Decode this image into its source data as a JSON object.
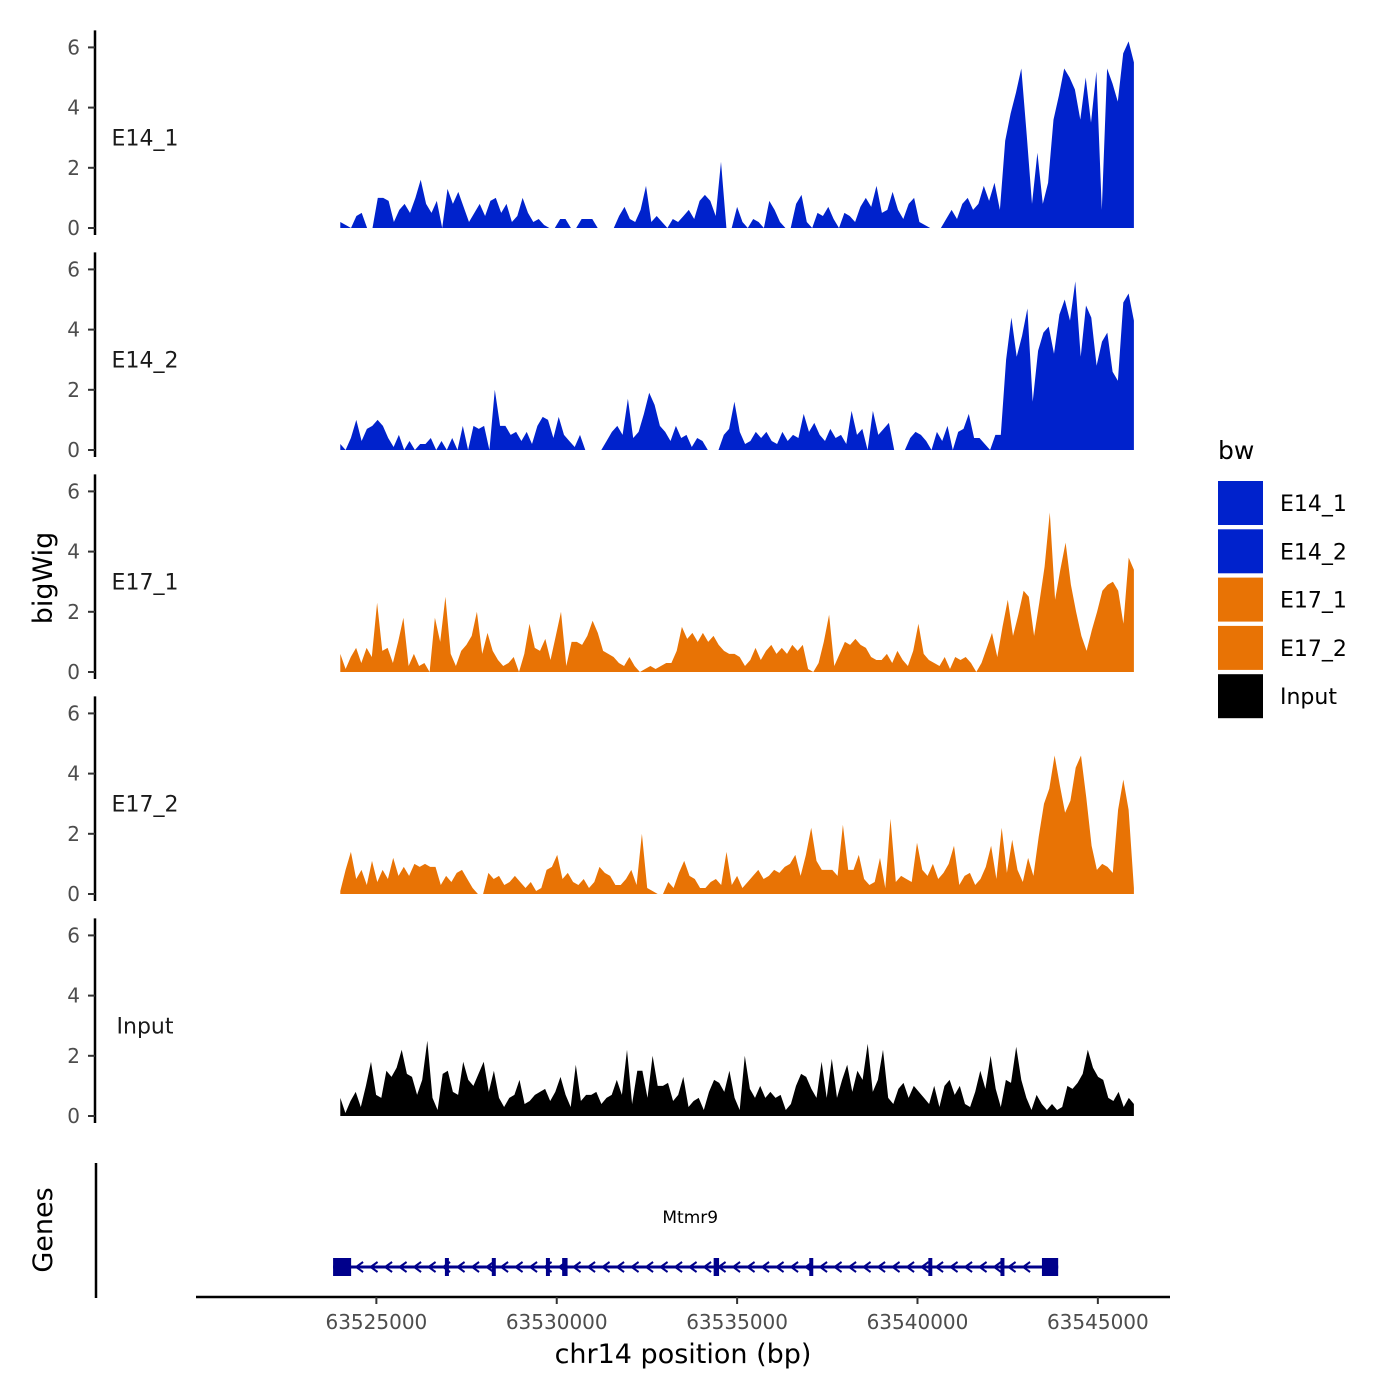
{
  "chart_data": {
    "type": "area",
    "title": "",
    "ylabel": "bigWig",
    "xlabel": "chr14 position (bp)",
    "genes_label": "Genes",
    "ylim": [
      0,
      6.5
    ],
    "yticks": [
      0,
      2,
      4,
      6
    ],
    "ytick_labels": [
      "0",
      "2",
      "4",
      "6"
    ],
    "xlim": [
      63520000,
      63547000
    ],
    "xticks": [
      63525000,
      63530000,
      63535000,
      63540000,
      63545000
    ],
    "xtick_labels": [
      "63525000",
      "63530000",
      "63535000",
      "63540000",
      "63545000"
    ],
    "region": [
      63524000,
      63546000
    ],
    "legend": {
      "title": "bw",
      "position": "right",
      "entries": [
        {
          "label": "E14_1",
          "color": "#0022cc"
        },
        {
          "label": "E14_2",
          "color": "#0022cc"
        },
        {
          "label": "E17_1",
          "color": "#e87305"
        },
        {
          "label": "E17_2",
          "color": "#e87305"
        },
        {
          "label": "Input",
          "color": "#000000"
        }
      ]
    },
    "series": [
      {
        "name": "E14_1",
        "color": "#0022cc",
        "values": [
          0.2,
          0.1,
          0,
          0.4,
          0.5,
          0,
          0,
          1.0,
          1.0,
          0.9,
          0.2,
          0.6,
          0.8,
          0.5,
          1.0,
          1.6,
          0.8,
          0.5,
          0.9,
          0,
          1.3,
          0.8,
          1.2,
          0.7,
          0.2,
          0.5,
          0.8,
          0.4,
          0.9,
          1.0,
          0.5,
          0.8,
          0.2,
          0.4,
          1.0,
          0.5,
          0.2,
          0.3,
          0.1,
          0,
          0,
          0.3,
          0.3,
          0,
          0,
          0.3,
          0.3,
          0.3,
          0,
          0,
          0,
          0,
          0.4,
          0.7,
          0.3,
          0.2,
          0.6,
          1.4,
          0.2,
          0.4,
          0.2,
          0,
          0.3,
          0.2,
          0.4,
          0.6,
          0.3,
          0.9,
          1.1,
          0.9,
          0.4,
          2.2,
          0,
          0,
          0.7,
          0.2,
          0,
          0.3,
          0.2,
          0,
          0.9,
          0.6,
          0.2,
          0,
          0,
          0.8,
          1.1,
          0.2,
          0,
          0.5,
          0.4,
          0.7,
          0.3,
          0,
          0.5,
          0.4,
          0.2,
          0.7,
          1.0,
          0.7,
          1.4,
          0.5,
          0.6,
          1.2,
          0.6,
          0.3,
          0.8,
          1.0,
          0.2,
          0.1,
          0,
          0,
          0,
          0.3,
          0.6,
          0.3,
          0.8,
          1.0,
          0.6,
          0.8,
          1.4,
          0.9,
          1.5,
          0.6,
          2.9,
          3.8,
          4.5,
          5.3,
          3.1,
          0.8,
          2.5,
          0.8,
          1.5,
          3.6,
          4.4,
          5.3,
          5.0,
          4.6,
          3.6,
          5.0,
          3.5,
          5.2,
          0.6,
          5.3,
          4.8,
          4.2,
          5.8,
          6.2,
          5.5
        ]
      },
      {
        "name": "E14_2",
        "color": "#0022cc",
        "values": [
          0.2,
          0,
          0.4,
          1.0,
          0.3,
          0.7,
          0.8,
          1.0,
          0.8,
          0.4,
          0.1,
          0.5,
          0,
          0.3,
          0,
          0.2,
          0.2,
          0.4,
          0,
          0.3,
          0,
          0.4,
          0,
          0.8,
          0,
          0.8,
          0.7,
          0.8,
          0,
          2.0,
          0.8,
          0.8,
          0.5,
          0.6,
          0.3,
          0.6,
          0.2,
          0.8,
          1.1,
          1.0,
          0.4,
          1.1,
          0.5,
          0.3,
          0.1,
          0.5,
          0,
          0,
          0,
          0,
          0.3,
          0.6,
          0.8,
          0.5,
          1.7,
          0.4,
          0.6,
          1.2,
          1.9,
          1.5,
          0.8,
          0.6,
          0.3,
          0.8,
          0.4,
          0.5,
          0.1,
          0.4,
          0.3,
          0,
          0,
          0,
          0.5,
          0.7,
          1.6,
          0.6,
          0.2,
          0.3,
          0.6,
          0.4,
          0.6,
          0.3,
          0.2,
          0.6,
          0.3,
          0.5,
          0.4,
          1.2,
          0.6,
          0.9,
          0.5,
          0.3,
          0.7,
          0.4,
          0.5,
          0.2,
          1.3,
          0.5,
          0.7,
          0,
          1.3,
          0.5,
          0.7,
          0.9,
          0,
          0,
          0,
          0.4,
          0.6,
          0.5,
          0.3,
          0,
          0.6,
          0.3,
          0.8,
          0,
          0.6,
          0.7,
          1.2,
          0.4,
          0.4,
          0.2,
          0,
          0.5,
          0.5,
          3.0,
          4.4,
          3.1,
          3.8,
          4.7,
          1.6,
          3.3,
          3.9,
          4.1,
          3.2,
          4.5,
          5.0,
          4.3,
          5.6,
          3.1,
          4.8,
          4.4,
          2.8,
          3.6,
          3.9,
          2.6,
          2.3,
          4.9,
          5.2,
          4.3
        ]
      },
      {
        "name": "E17_1",
        "color": "#e87305",
        "values": [
          0.6,
          0.1,
          0.5,
          0.8,
          0.3,
          0.8,
          0.5,
          2.3,
          0.7,
          0.8,
          0.3,
          1.0,
          1.8,
          0.2,
          0.6,
          0.2,
          0.3,
          0,
          1.8,
          1.0,
          2.5,
          0.6,
          0.2,
          0.7,
          0.9,
          1.2,
          2.0,
          0.6,
          1.3,
          0.7,
          0.4,
          0.2,
          0.3,
          0.5,
          0,
          0.6,
          1.6,
          0.8,
          0.7,
          1.1,
          0.4,
          1.2,
          2.0,
          0.2,
          1.0,
          1.0,
          0.9,
          1.2,
          1.7,
          1.3,
          0.7,
          0.6,
          0.5,
          0.3,
          0.2,
          0.5,
          0.2,
          0,
          0.1,
          0.2,
          0.1,
          0.2,
          0.3,
          0.3,
          0.7,
          1.5,
          1.1,
          1.3,
          1.0,
          1.3,
          1.0,
          1.2,
          0.9,
          0.7,
          0.6,
          0.6,
          0.5,
          0.2,
          0.4,
          0.8,
          0.4,
          0.7,
          0.9,
          0.6,
          0.8,
          0.6,
          0.9,
          0.7,
          0.9,
          0.1,
          0,
          0.3,
          1.0,
          1.9,
          0.2,
          0.6,
          1.0,
          0.9,
          1.1,
          0.9,
          0.8,
          0.5,
          0.4,
          0.4,
          0.6,
          0.3,
          0.7,
          0.4,
          0.2,
          0.7,
          1.6,
          0.6,
          0.4,
          0.3,
          0.2,
          0.5,
          0.1,
          0.5,
          0.4,
          0.5,
          0.3,
          0,
          0.3,
          0.8,
          1.3,
          0.5,
          1.5,
          2.4,
          1.2,
          1.9,
          2.7,
          2.5,
          1.2,
          2.3,
          3.5,
          5.3,
          2.4,
          3.4,
          4.3,
          2.9,
          2.0,
          1.2,
          0.7,
          1.4,
          2.0,
          2.7,
          2.9,
          3.0,
          2.7,
          1.6,
          3.8,
          3.4
        ]
      },
      {
        "name": "E17_2",
        "color": "#e87305",
        "values": [
          0.1,
          0.8,
          1.4,
          0.5,
          0.8,
          0.3,
          1.1,
          0.4,
          0.8,
          0.5,
          1.2,
          0.6,
          0.9,
          0.6,
          1.0,
          0.9,
          1.0,
          0.9,
          0.9,
          0.3,
          0.6,
          0.4,
          0.7,
          0.8,
          0.5,
          0.2,
          0,
          0,
          0.7,
          0.5,
          0.6,
          0.3,
          0.4,
          0.6,
          0.4,
          0.2,
          0.4,
          0.1,
          0.2,
          0.8,
          0.9,
          1.3,
          0.5,
          0.7,
          0.4,
          0.3,
          0.5,
          0.2,
          0.4,
          0.9,
          0.7,
          0.6,
          0.3,
          0.3,
          0.5,
          0.8,
          0.3,
          2.0,
          0.2,
          0.1,
          0,
          0,
          0.4,
          0.2,
          0.7,
          1.1,
          0.6,
          0.5,
          0.2,
          0.2,
          0.4,
          0.5,
          0.3,
          1.4,
          0.3,
          0.6,
          0.2,
          0.4,
          0.6,
          0.8,
          0.5,
          0.6,
          0.8,
          0.7,
          0.9,
          1.0,
          1.3,
          0.6,
          1.3,
          2.2,
          1.1,
          0.8,
          0.8,
          0.8,
          0.6,
          2.3,
          0.8,
          0.8,
          1.3,
          0.5,
          0.3,
          0.4,
          1.2,
          0.2,
          2.5,
          0.4,
          0.6,
          0.5,
          0.4,
          1.7,
          0.8,
          0.6,
          1.0,
          0.5,
          0.7,
          1.0,
          1.6,
          0.3,
          0.6,
          0.7,
          0.3,
          0.5,
          0.9,
          1.6,
          0.5,
          2.2,
          0.7,
          1.8,
          0.8,
          0.4,
          1.2,
          0.6,
          1.9,
          3.0,
          3.5,
          4.6,
          3.6,
          2.7,
          3.1,
          4.2,
          4.6,
          3.2,
          1.6,
          0.8,
          1.0,
          0.9,
          0.7,
          2.8,
          3.8,
          2.8,
          0.2
        ]
      },
      {
        "name": "Input",
        "color": "#000000",
        "values": [
          0.6,
          0.1,
          0.5,
          0.8,
          0.3,
          1.0,
          1.8,
          0.7,
          0.6,
          1.5,
          1.3,
          1.6,
          2.2,
          1.4,
          1.3,
          0.7,
          1.2,
          2.5,
          0.6,
          0.2,
          1.4,
          1.5,
          0.8,
          0.7,
          1.8,
          1.2,
          1.0,
          1.4,
          1.8,
          0.8,
          1.5,
          0.6,
          0.3,
          0.6,
          0.7,
          1.2,
          0.4,
          0.5,
          0.7,
          0.8,
          0.9,
          0.5,
          0.8,
          1.3,
          0.7,
          0.3,
          1.7,
          0.5,
          0.7,
          0.7,
          0.8,
          0.4,
          0.6,
          0.7,
          1.2,
          0.7,
          2.2,
          0.4,
          1.5,
          1.5,
          0.6,
          2.0,
          1.0,
          1.0,
          1.1,
          0.5,
          0.7,
          1.3,
          0.3,
          0.5,
          0.6,
          0.2,
          0.8,
          1.2,
          1.1,
          0.8,
          1.5,
          0.6,
          0.2,
          2.0,
          0.9,
          0.6,
          1.0,
          0.6,
          0.8,
          0.6,
          0.7,
          0.2,
          0.4,
          1.0,
          1.4,
          1.3,
          0.9,
          0.6,
          1.8,
          0.6,
          1.9,
          0.6,
          1.2,
          1.7,
          0.8,
          1.5,
          1.2,
          2.4,
          0.8,
          1.2,
          2.2,
          0.6,
          0.4,
          0.9,
          1.1,
          0.6,
          1.0,
          0.8,
          0.6,
          0.4,
          1.0,
          0.3,
          1.0,
          1.2,
          0.7,
          1.0,
          0.4,
          0.3,
          0.8,
          1.5,
          0.9,
          2.0,
          0.9,
          0.3,
          1.2,
          1.1,
          2.3,
          1.2,
          0.6,
          0.2,
          0.7,
          0.4,
          0.2,
          0.4,
          0.2,
          0.3,
          1.0,
          0.9,
          1.1,
          1.4,
          2.2,
          1.6,
          1.3,
          1.2,
          0.6,
          0.5,
          0.8,
          0.3,
          0.6,
          0.4
        ]
      }
    ],
    "gene_track": {
      "gene_name": "Mtmr9",
      "strand": "-",
      "color": "#00008b",
      "start": 63523800,
      "end": 63543900,
      "exons": [
        {
          "start": 63523800,
          "end": 63524300
        },
        {
          "start": 63526900,
          "end": 63527000
        },
        {
          "start": 63528200,
          "end": 63528300
        },
        {
          "start": 63529700,
          "end": 63529800
        },
        {
          "start": 63530150,
          "end": 63530300
        },
        {
          "start": 63534350,
          "end": 63534500
        },
        {
          "start": 63537000,
          "end": 63537100
        },
        {
          "start": 63540300,
          "end": 63540400
        },
        {
          "start": 63542300,
          "end": 63542350
        },
        {
          "start": 63543450,
          "end": 63543900
        }
      ]
    }
  }
}
